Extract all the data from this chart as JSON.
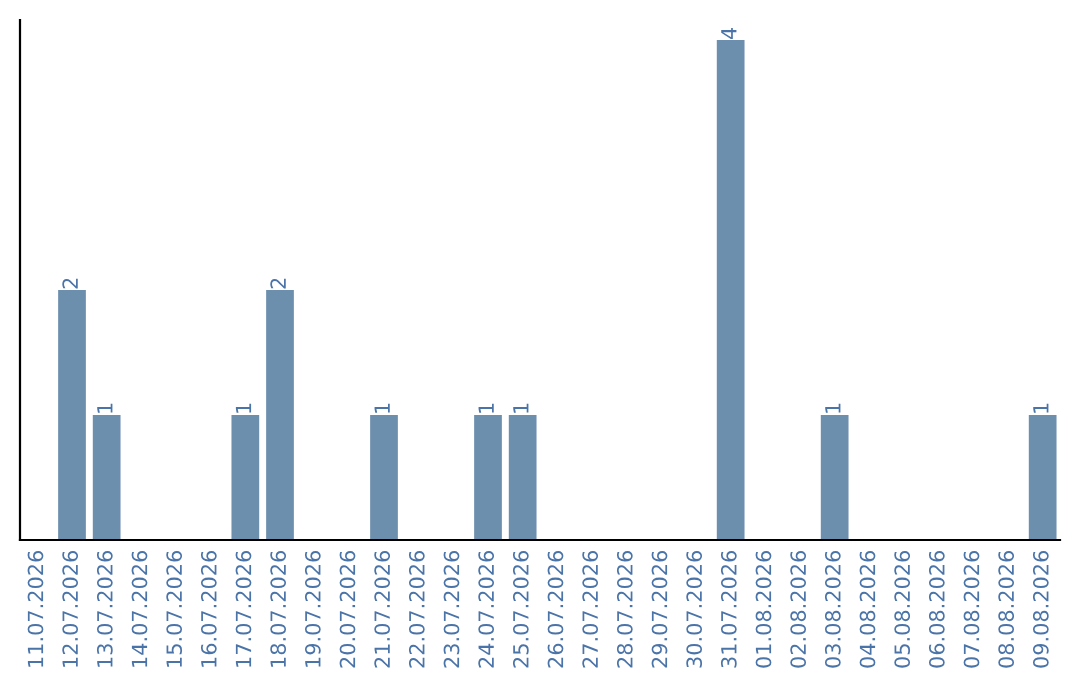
{
  "chart_data": {
    "type": "bar",
    "categories": [
      "11.07.2026",
      "12.07.2026",
      "13.07.2026",
      "14.07.2026",
      "15.07.2026",
      "16.07.2026",
      "17.07.2026",
      "18.07.2026",
      "19.07.2026",
      "20.07.2026",
      "21.07.2026",
      "22.07.2026",
      "23.07.2026",
      "24.07.2026",
      "25.07.2026",
      "26.07.2026",
      "27.07.2026",
      "28.07.2026",
      "29.07.2026",
      "30.07.2026",
      "31.07.2026",
      "01.08.2026",
      "02.08.2026",
      "03.08.2026",
      "04.08.2026",
      "05.08.2026",
      "06.08.2026",
      "07.08.2026",
      "08.08.2026",
      "09.08.2026"
    ],
    "values": [
      0,
      2,
      1,
      0,
      0,
      0,
      1,
      2,
      0,
      0,
      1,
      0,
      0,
      1,
      1,
      0,
      0,
      0,
      0,
      0,
      4,
      0,
      0,
      1,
      0,
      0,
      0,
      0,
      0,
      1
    ],
    "color": "#6d8fae",
    "value_labels": [
      null,
      "2",
      "1",
      null,
      null,
      null,
      "1",
      "2",
      null,
      null,
      "1",
      null,
      null,
      "1",
      "1",
      null,
      null,
      null,
      null,
      null,
      "4",
      null,
      null,
      "1",
      null,
      null,
      null,
      null,
      null,
      "1"
    ],
    "tick_labels": "x",
    "grid": false,
    "legend": false
  }
}
